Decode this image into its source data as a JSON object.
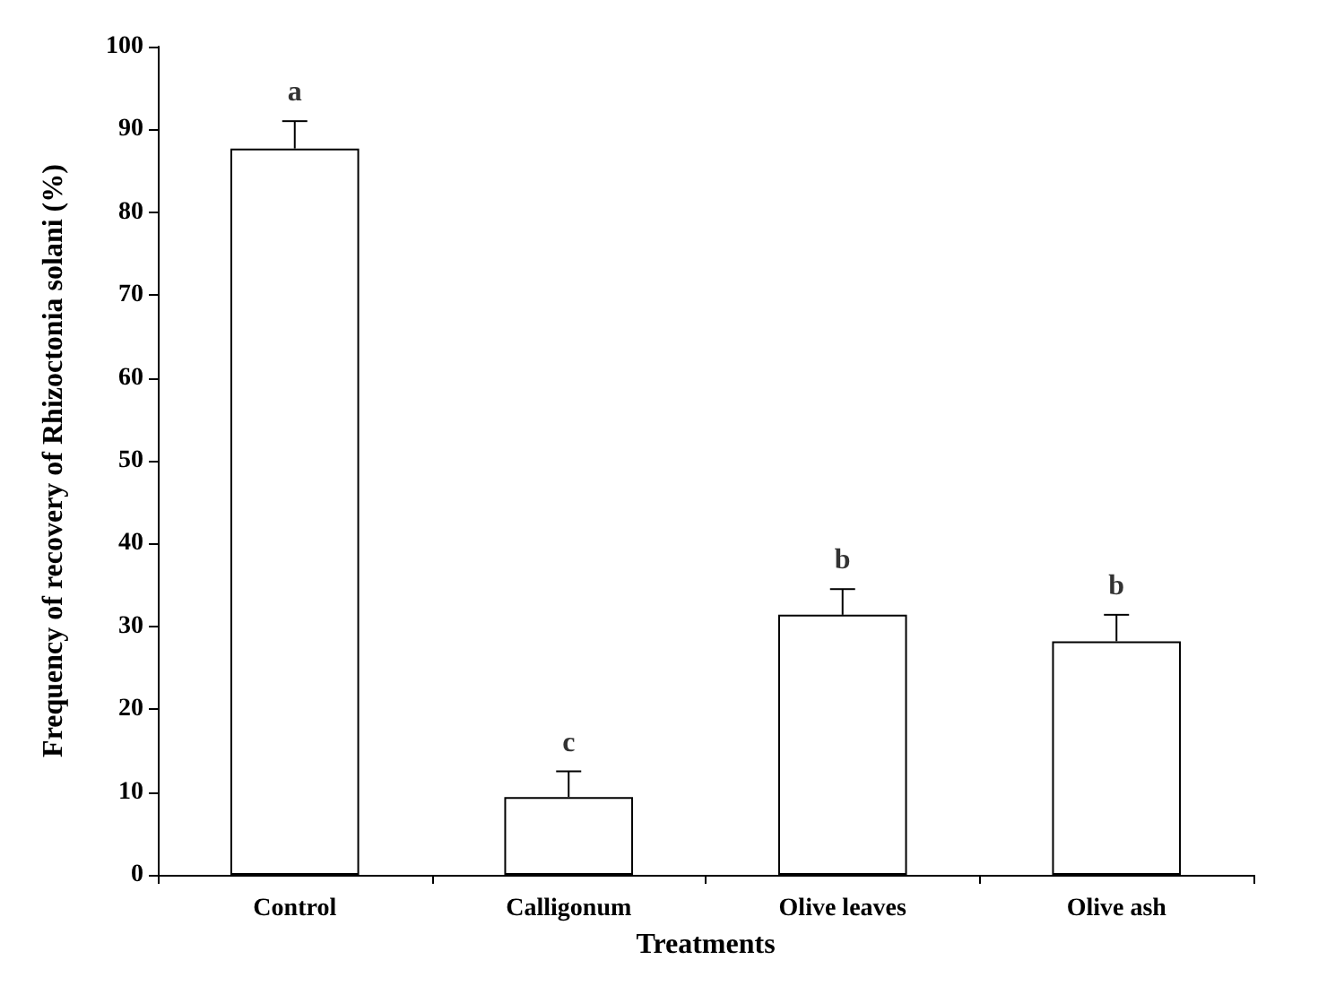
{
  "chart_data": {
    "type": "bar",
    "xlabel": "Treatments",
    "ylabel": "Frequency of recovery of Rhizoctonia solani (%)",
    "categories": [
      "Control",
      "Calligonum",
      "Olive leaves",
      "Olive ash"
    ],
    "values": [
      87.7,
      9.4,
      31.4,
      28.2
    ],
    "errors": [
      [
        87.7,
        91.0
      ],
      [
        9.4,
        12.5
      ],
      [
        31.4,
        34.5
      ],
      [
        28.2,
        31.4
      ]
    ],
    "colors": [
      "#ffffff",
      "#ffffff",
      "#ffffff",
      "#ffffff"
    ],
    "ylim": [
      0,
      100
    ],
    "yticks": [
      0,
      10,
      20,
      30,
      40,
      50,
      60,
      70,
      80,
      90,
      100
    ],
    "annotations": [
      "a",
      "c",
      "b",
      "b"
    ],
    "grid": false
  }
}
